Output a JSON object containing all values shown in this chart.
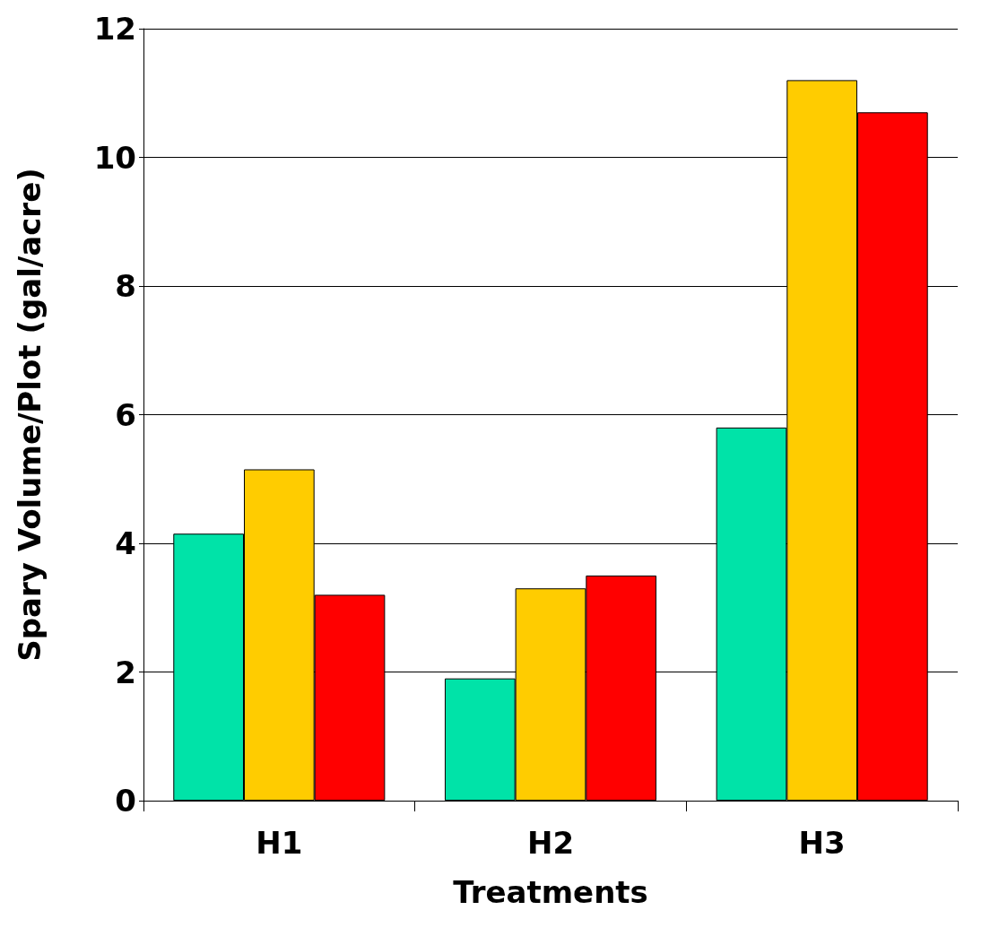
{
  "chart_data": {
    "type": "bar",
    "xlabel": "Treatments",
    "ylabel": "Spary Volume/Plot (gal/acre)",
    "categories": [
      "H1",
      "H2",
      "H3"
    ],
    "series": [
      {
        "color": "#00e3a8",
        "values": [
          4.15,
          1.9,
          5.8
        ]
      },
      {
        "color": "#ffcc00",
        "values": [
          5.15,
          3.3,
          11.2
        ]
      },
      {
        "color": "#ff0000",
        "values": [
          3.2,
          3.5,
          10.7
        ]
      }
    ],
    "ylim": [
      0,
      12
    ],
    "yticks": [
      0,
      2,
      4,
      6,
      8,
      10,
      12
    ],
    "grid": "y"
  }
}
